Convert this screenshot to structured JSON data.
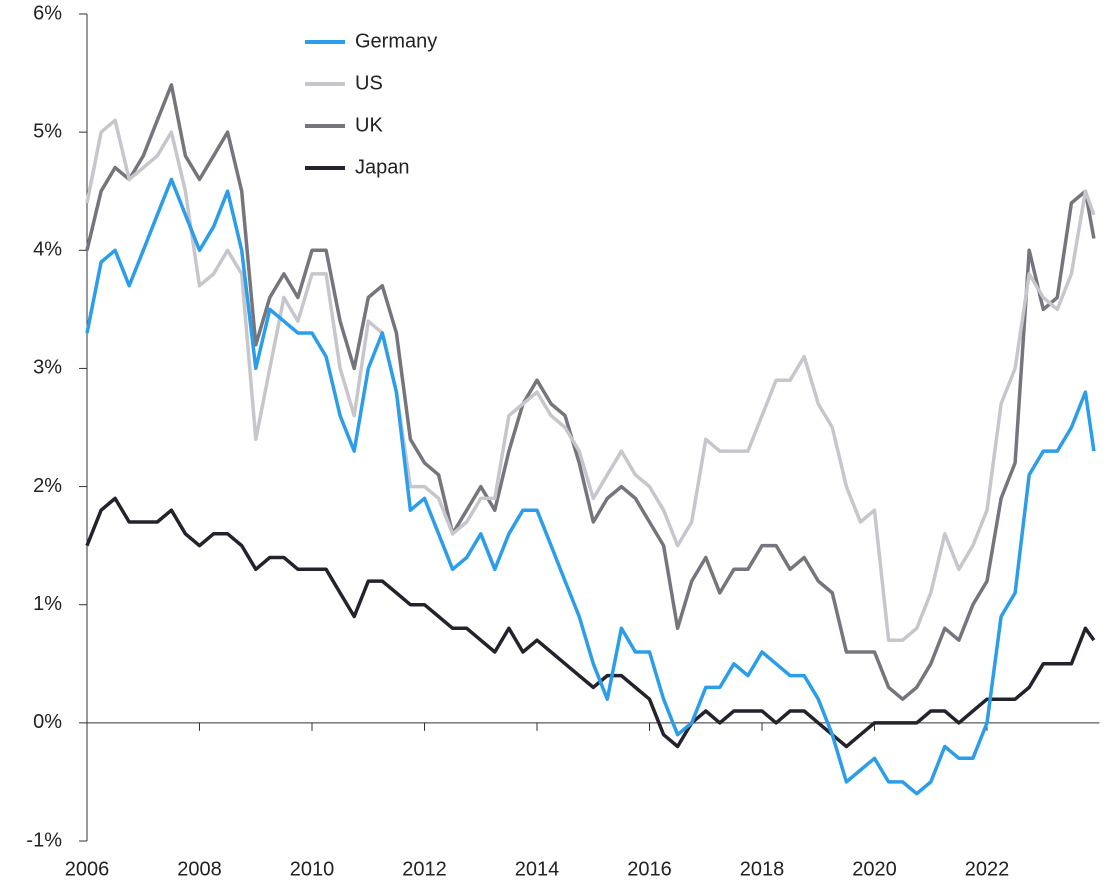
{
  "chart_data": {
    "type": "line",
    "x": [
      2006,
      2006.25,
      2006.5,
      2006.75,
      2007,
      2007.25,
      2007.5,
      2007.75,
      2008,
      2008.25,
      2008.5,
      2008.75,
      2009,
      2009.25,
      2009.5,
      2009.75,
      2010,
      2010.25,
      2010.5,
      2010.75,
      2011,
      2011.25,
      2011.5,
      2011.75,
      2012,
      2012.25,
      2012.5,
      2012.75,
      2013,
      2013.25,
      2013.5,
      2013.75,
      2014,
      2014.25,
      2014.5,
      2014.75,
      2015,
      2015.25,
      2015.5,
      2015.75,
      2016,
      2016.25,
      2016.5,
      2016.75,
      2017,
      2017.25,
      2017.5,
      2017.75,
      2018,
      2018.25,
      2018.5,
      2018.75,
      2019,
      2019.25,
      2019.5,
      2019.75,
      2020,
      2020.25,
      2020.5,
      2020.75,
      2021,
      2021.25,
      2021.5,
      2021.75,
      2022,
      2022.25,
      2022.5,
      2022.75,
      2023,
      2023.25,
      2023.5,
      2023.75,
      2023.9
    ],
    "series": [
      {
        "name": "Germany",
        "color": "#2b9de9",
        "values": [
          3.3,
          3.9,
          4.0,
          3.7,
          4.0,
          4.3,
          4.6,
          4.3,
          4.0,
          4.2,
          4.5,
          4.0,
          3.0,
          3.5,
          3.4,
          3.3,
          3.3,
          3.1,
          2.6,
          2.3,
          3.0,
          3.3,
          2.8,
          1.8,
          1.9,
          1.6,
          1.3,
          1.4,
          1.6,
          1.3,
          1.6,
          1.8,
          1.8,
          1.5,
          1.2,
          0.9,
          0.5,
          0.2,
          0.8,
          0.6,
          0.6,
          0.2,
          -0.1,
          0.0,
          0.3,
          0.3,
          0.5,
          0.4,
          0.6,
          0.5,
          0.4,
          0.4,
          0.2,
          -0.1,
          -0.5,
          -0.4,
          -0.3,
          -0.5,
          -0.5,
          -0.6,
          -0.5,
          -0.2,
          -0.3,
          -0.3,
          0.0,
          0.9,
          1.1,
          2.1,
          2.3,
          2.3,
          2.5,
          2.8,
          2.3
        ]
      },
      {
        "name": "US",
        "color": "#c6c6cc",
        "values": [
          4.4,
          5.0,
          5.1,
          4.6,
          4.7,
          4.8,
          5.0,
          4.5,
          3.7,
          3.8,
          4.0,
          3.8,
          2.4,
          3.0,
          3.6,
          3.4,
          3.8,
          3.8,
          3.0,
          2.6,
          3.4,
          3.3,
          2.8,
          2.0,
          2.0,
          1.9,
          1.6,
          1.7,
          1.9,
          1.9,
          2.6,
          2.7,
          2.8,
          2.6,
          2.5,
          2.3,
          1.9,
          2.1,
          2.3,
          2.1,
          2.0,
          1.8,
          1.5,
          1.7,
          2.4,
          2.3,
          2.3,
          2.3,
          2.6,
          2.9,
          2.9,
          3.1,
          2.7,
          2.5,
          2.0,
          1.7,
          1.8,
          0.7,
          0.7,
          0.8,
          1.1,
          1.6,
          1.3,
          1.5,
          1.8,
          2.7,
          3.0,
          3.8,
          3.6,
          3.5,
          3.8,
          4.5,
          4.3
        ]
      },
      {
        "name": "UK",
        "color": "#75757d",
        "values": [
          4.0,
          4.5,
          4.7,
          4.6,
          4.8,
          5.1,
          5.4,
          4.8,
          4.6,
          4.8,
          5.0,
          4.5,
          3.2,
          3.6,
          3.8,
          3.6,
          4.0,
          4.0,
          3.4,
          3.0,
          3.6,
          3.7,
          3.3,
          2.4,
          2.2,
          2.1,
          1.6,
          1.8,
          2.0,
          1.8,
          2.3,
          2.7,
          2.9,
          2.7,
          2.6,
          2.2,
          1.7,
          1.9,
          2.0,
          1.9,
          1.7,
          1.5,
          0.8,
          1.2,
          1.4,
          1.1,
          1.3,
          1.3,
          1.5,
          1.5,
          1.3,
          1.4,
          1.2,
          1.1,
          0.6,
          0.6,
          0.6,
          0.3,
          0.2,
          0.3,
          0.5,
          0.8,
          0.7,
          1.0,
          1.2,
          1.9,
          2.2,
          4.0,
          3.5,
          3.6,
          4.4,
          4.5,
          4.1
        ]
      },
      {
        "name": "Japan",
        "color": "#24232d",
        "values": [
          1.5,
          1.8,
          1.9,
          1.7,
          1.7,
          1.7,
          1.8,
          1.6,
          1.5,
          1.6,
          1.6,
          1.5,
          1.3,
          1.4,
          1.4,
          1.3,
          1.3,
          1.3,
          1.1,
          0.9,
          1.2,
          1.2,
          1.1,
          1.0,
          1.0,
          0.9,
          0.8,
          0.8,
          0.7,
          0.6,
          0.8,
          0.6,
          0.7,
          0.6,
          0.5,
          0.4,
          0.3,
          0.4,
          0.4,
          0.3,
          0.2,
          -0.1,
          -0.2,
          0.0,
          0.1,
          0.0,
          0.1,
          0.1,
          0.1,
          0.0,
          0.1,
          0.1,
          0.0,
          -0.1,
          -0.2,
          -0.1,
          0.0,
          0.0,
          0.0,
          0.0,
          0.1,
          0.1,
          0.0,
          0.1,
          0.2,
          0.2,
          0.2,
          0.3,
          0.5,
          0.5,
          0.5,
          0.8,
          0.7
        ]
      }
    ],
    "xlim": [
      2006,
      2024
    ],
    "xticks": [
      2006,
      2008,
      2010,
      2012,
      2014,
      2016,
      2018,
      2020,
      2022
    ],
    "ylim": [
      -1,
      6
    ],
    "yticks": [
      {
        "value": -1,
        "label": "-1%"
      },
      {
        "value": 0,
        "label": "0%"
      },
      {
        "value": 1,
        "label": "1%"
      },
      {
        "value": 2,
        "label": "2%"
      },
      {
        "value": 3,
        "label": "3%"
      },
      {
        "value": 4,
        "label": "4%"
      },
      {
        "value": 5,
        "label": "5%"
      },
      {
        "value": 6,
        "label": "6%"
      }
    ],
    "legend": "top-left"
  }
}
